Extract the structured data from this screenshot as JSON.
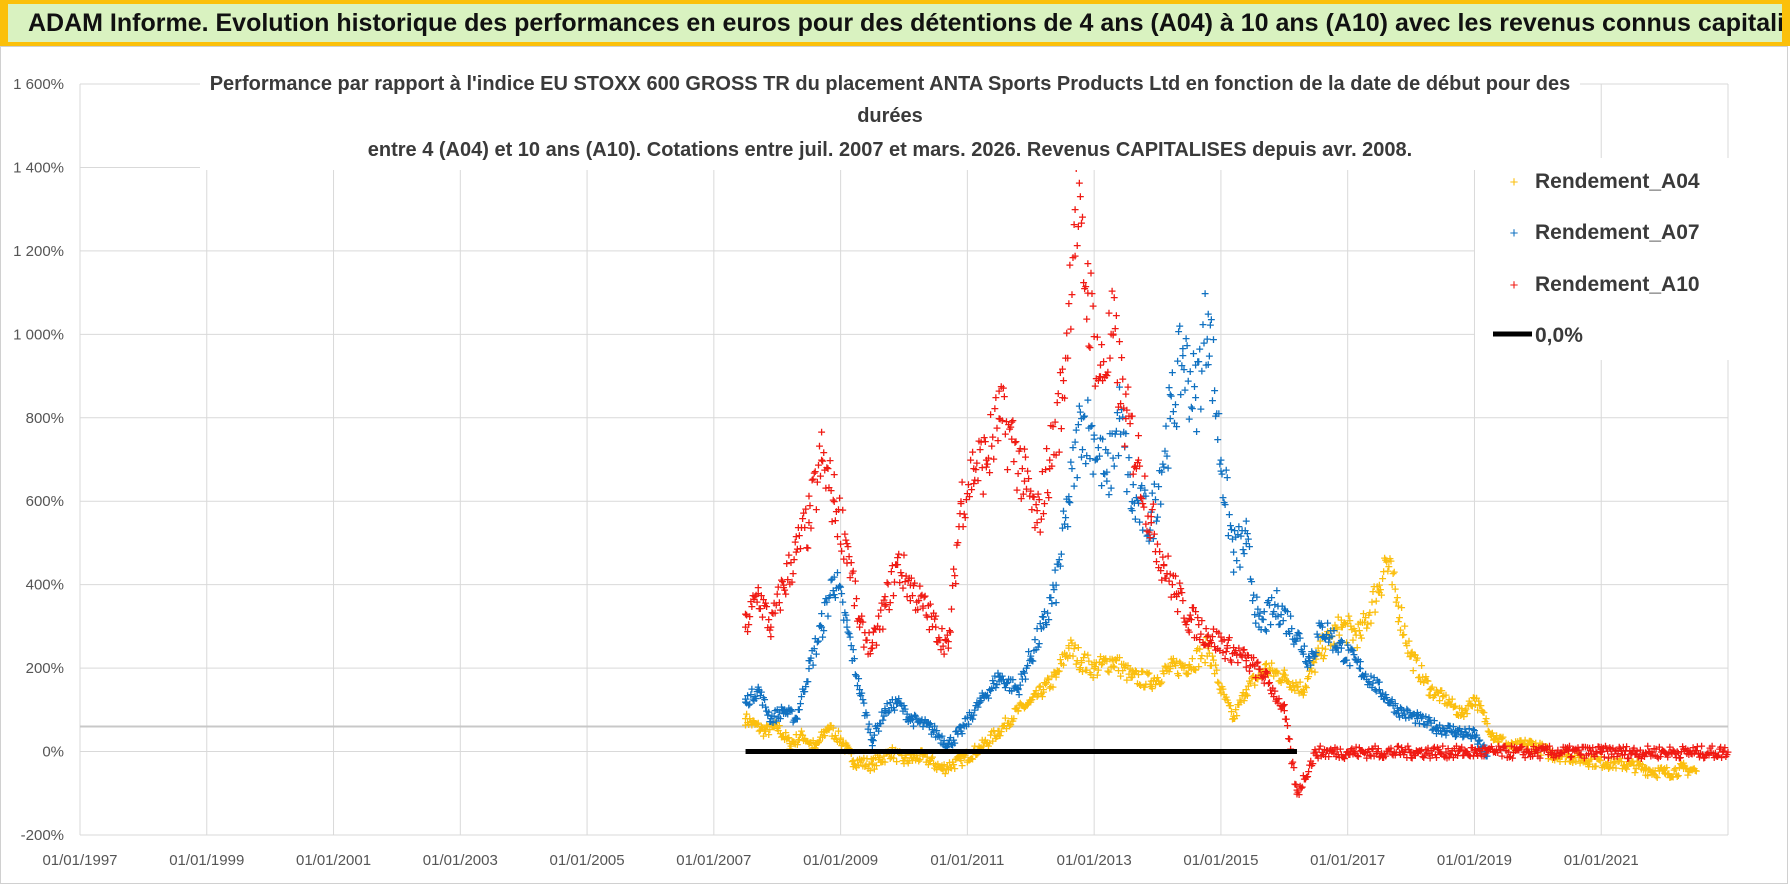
{
  "header": {
    "title": "ADAM Informe. Evolution historique des performances en euros pour des détentions de 4 ans (A04) à 10 ans (A10) avec les revenus connus capitalisés"
  },
  "chart_data": {
    "type": "scatter",
    "title_lines": [
      "Performance par rapport à l'indice EU STOXX 600 GROSS TR  du placement ANTA Sports Products Ltd en fonction de la date de début pour des",
      "durées",
      "entre 4 (A04) et 10 ans (A10).  Cotations entre juil. 2007 et mars. 2026. Revenus CAPITALISES depuis avr. 2008."
    ],
    "xlim": [
      1997.0,
      2023.0
    ],
    "ylim": [
      -200,
      1600
    ],
    "x_ticks": [
      1997,
      1999,
      2001,
      2003,
      2005,
      2007,
      2009,
      2011,
      2013,
      2015,
      2017,
      2019,
      2021
    ],
    "x_tick_labels": [
      "01/01/1997",
      "01/01/1999",
      "01/01/2001",
      "01/01/2003",
      "01/01/2005",
      "01/01/2007",
      "01/01/2009",
      "01/01/2011",
      "01/01/2013",
      "01/01/2015",
      "01/01/2017",
      "01/01/2019",
      "01/01/2021"
    ],
    "y_ticks": [
      -200,
      0,
      200,
      400,
      600,
      800,
      1000,
      1200,
      1400,
      1600
    ],
    "y_tick_labels": [
      "-200%",
      "0%",
      "200%",
      "400%",
      "600%",
      "800%",
      "1 000%",
      "1 200%",
      "1 400%",
      "1 600%"
    ],
    "legend_position": "top-right",
    "series": [
      {
        "name": "Rendement_A04",
        "color": "#fbbf0f",
        "marker": "+",
        "points": [
          [
            2007.5,
            80
          ],
          [
            2007.8,
            50
          ],
          [
            2008.0,
            60
          ],
          [
            2008.2,
            20
          ],
          [
            2008.4,
            40
          ],
          [
            2008.6,
            10
          ],
          [
            2008.8,
            60
          ],
          [
            2009.0,
            30
          ],
          [
            2009.2,
            -20
          ],
          [
            2009.5,
            -30
          ],
          [
            2009.8,
            0
          ],
          [
            2010.0,
            -20
          ],
          [
            2010.3,
            -10
          ],
          [
            2010.6,
            -40
          ],
          [
            2010.9,
            -20
          ],
          [
            2011.2,
            10
          ],
          [
            2011.5,
            50
          ],
          [
            2011.8,
            100
          ],
          [
            2012.0,
            120
          ],
          [
            2012.2,
            150
          ],
          [
            2012.4,
            180
          ],
          [
            2012.6,
            250
          ],
          [
            2012.8,
            220
          ],
          [
            2013.0,
            200
          ],
          [
            2013.3,
            220
          ],
          [
            2013.6,
            180
          ],
          [
            2013.9,
            170
          ],
          [
            2014.2,
            200
          ],
          [
            2014.5,
            210
          ],
          [
            2014.8,
            250
          ],
          [
            2015.0,
            150
          ],
          [
            2015.2,
            80
          ],
          [
            2015.4,
            150
          ],
          [
            2015.7,
            200
          ],
          [
            2016.0,
            180
          ],
          [
            2016.3,
            150
          ],
          [
            2016.6,
            250
          ],
          [
            2016.9,
            300
          ],
          [
            2017.2,
            280
          ],
          [
            2017.5,
            400
          ],
          [
            2017.6,
            460
          ],
          [
            2017.8,
            350
          ],
          [
            2018.0,
            230
          ],
          [
            2018.3,
            150
          ],
          [
            2018.6,
            120
          ],
          [
            2018.8,
            90
          ],
          [
            2019.0,
            130
          ],
          [
            2019.3,
            40
          ],
          [
            2019.6,
            10
          ],
          [
            2019.9,
            20
          ],
          [
            2020.2,
            -5
          ],
          [
            2020.5,
            -10
          ],
          [
            2020.8,
            -20
          ],
          [
            2021.1,
            -25
          ],
          [
            2021.4,
            -30
          ],
          [
            2021.7,
            -40
          ],
          [
            2022.0,
            -50
          ],
          [
            2022.3,
            -40
          ],
          [
            2022.5,
            -45
          ]
        ]
      },
      {
        "name": "Rendement_A07",
        "color": "#1071c1",
        "marker": "+",
        "points": [
          [
            2007.5,
            120
          ],
          [
            2007.7,
            150
          ],
          [
            2007.9,
            80
          ],
          [
            2008.1,
            100
          ],
          [
            2008.3,
            80
          ],
          [
            2008.5,
            200
          ],
          [
            2008.7,
            300
          ],
          [
            2008.9,
            420
          ],
          [
            2009.1,
            300
          ],
          [
            2009.3,
            150
          ],
          [
            2009.5,
            30
          ],
          [
            2009.7,
            100
          ],
          [
            2009.9,
            120
          ],
          [
            2010.1,
            80
          ],
          [
            2010.4,
            60
          ],
          [
            2010.7,
            20
          ],
          [
            2010.9,
            50
          ],
          [
            2011.2,
            120
          ],
          [
            2011.5,
            180
          ],
          [
            2011.8,
            150
          ],
          [
            2012.0,
            230
          ],
          [
            2012.2,
            300
          ],
          [
            2012.4,
            400
          ],
          [
            2012.6,
            600
          ],
          [
            2012.8,
            800
          ],
          [
            2013.0,
            750
          ],
          [
            2013.2,
            650
          ],
          [
            2013.4,
            800
          ],
          [
            2013.6,
            600
          ],
          [
            2013.9,
            550
          ],
          [
            2014.2,
            800
          ],
          [
            2014.4,
            950
          ],
          [
            2014.6,
            850
          ],
          [
            2014.8,
            1050
          ],
          [
            2015.0,
            700
          ],
          [
            2015.2,
            480
          ],
          [
            2015.4,
            500
          ],
          [
            2015.6,
            300
          ],
          [
            2015.9,
            350
          ],
          [
            2016.2,
            280
          ],
          [
            2016.4,
            220
          ],
          [
            2016.6,
            300
          ],
          [
            2016.9,
            250
          ],
          [
            2017.2,
            200
          ],
          [
            2017.5,
            150
          ],
          [
            2017.8,
            100
          ],
          [
            2018.1,
            80
          ],
          [
            2018.4,
            60
          ],
          [
            2018.7,
            50
          ],
          [
            2019.0,
            40
          ],
          [
            2019.2,
            -10
          ]
        ]
      },
      {
        "name": "Rendement_A10",
        "color": "#f01a13",
        "marker": "+",
        "points": [
          [
            2007.5,
            300
          ],
          [
            2007.7,
            380
          ],
          [
            2007.9,
            300
          ],
          [
            2008.1,
            400
          ],
          [
            2008.3,
            480
          ],
          [
            2008.5,
            550
          ],
          [
            2008.7,
            700
          ],
          [
            2008.9,
            600
          ],
          [
            2009.1,
            500
          ],
          [
            2009.3,
            300
          ],
          [
            2009.5,
            250
          ],
          [
            2009.7,
            350
          ],
          [
            2009.9,
            450
          ],
          [
            2010.1,
            400
          ],
          [
            2010.3,
            350
          ],
          [
            2010.5,
            300
          ],
          [
            2010.7,
            250
          ],
          [
            2010.9,
            600
          ],
          [
            2011.1,
            680
          ],
          [
            2011.3,
            700
          ],
          [
            2011.5,
            800
          ],
          [
            2011.7,
            750
          ],
          [
            2011.9,
            650
          ],
          [
            2012.1,
            550
          ],
          [
            2012.3,
            700
          ],
          [
            2012.5,
            850
          ],
          [
            2012.7,
            1300
          ],
          [
            2012.9,
            1100
          ],
          [
            2013.1,
            900
          ],
          [
            2013.3,
            1000
          ],
          [
            2013.5,
            800
          ],
          [
            2013.7,
            700
          ],
          [
            2013.9,
            550
          ],
          [
            2014.1,
            450
          ],
          [
            2014.3,
            380
          ],
          [
            2014.5,
            320
          ],
          [
            2014.8,
            280
          ],
          [
            2015.1,
            250
          ],
          [
            2015.4,
            220
          ],
          [
            2015.7,
            180
          ],
          [
            2016.0,
            100
          ],
          [
            2016.2,
            -100
          ],
          [
            2016.5,
            0
          ],
          [
            2017.0,
            0
          ],
          [
            2018.0,
            0
          ],
          [
            2019.0,
            0
          ],
          [
            2020.0,
            0
          ],
          [
            2021.0,
            0
          ],
          [
            2022.0,
            0
          ],
          [
            2023.0,
            0
          ]
        ]
      },
      {
        "name": "0,0%",
        "color": "#000000",
        "marker": "line",
        "points": [
          [
            2007.5,
            0
          ],
          [
            2016.2,
            0
          ]
        ]
      }
    ]
  }
}
